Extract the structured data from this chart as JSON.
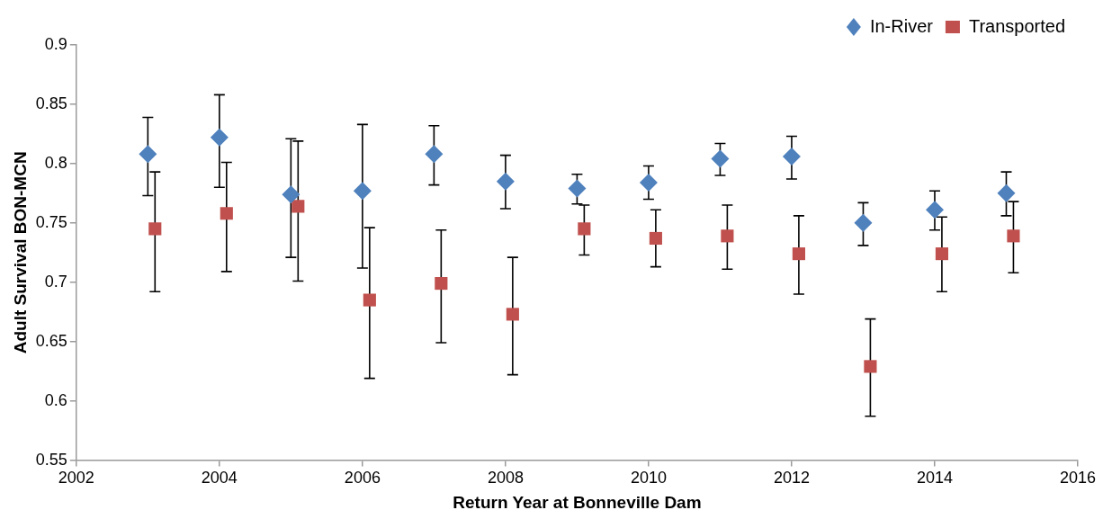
{
  "chart_data": {
    "type": "scatter",
    "xlabel": "Return Year at Bonneville Dam",
    "ylabel": "Adult Survival BON-MCN",
    "xlim": [
      2002,
      2016
    ],
    "xticks": [
      2002,
      2004,
      2006,
      2008,
      2010,
      2012,
      2014,
      2016
    ],
    "ylim": [
      0.55,
      0.9
    ],
    "yticks": [
      0.55,
      0.6,
      0.65,
      0.7,
      0.75,
      0.8,
      0.85,
      0.9
    ],
    "grid": false,
    "legend": "top right",
    "series": [
      {
        "name": "In-River",
        "color": "#4f81bd",
        "marker": "diamond",
        "x": [
          2003,
          2004,
          2005,
          2006,
          2007,
          2008,
          2009,
          2010,
          2011,
          2012,
          2013,
          2014,
          2015
        ],
        "values": [
          0.808,
          0.822,
          0.774,
          0.777,
          0.808,
          0.785,
          0.779,
          0.784,
          0.804,
          0.806,
          0.75,
          0.761,
          0.775
        ],
        "errors": [
          [
            0.773,
            0.839
          ],
          [
            0.78,
            0.858
          ],
          [
            0.721,
            0.821
          ],
          [
            0.712,
            0.833
          ],
          [
            0.782,
            0.832
          ],
          [
            0.762,
            0.807
          ],
          [
            0.766,
            0.791
          ],
          [
            0.77,
            0.798
          ],
          [
            0.79,
            0.817
          ],
          [
            0.787,
            0.823
          ],
          [
            0.731,
            0.767
          ],
          [
            0.744,
            0.777
          ],
          [
            0.756,
            0.793
          ]
        ]
      },
      {
        "name": "Transported",
        "color": "#c0504d",
        "marker": "square",
        "x": [
          2003.1,
          2004.1,
          2005.1,
          2006.1,
          2007.1,
          2008.1,
          2009.1,
          2010.1,
          2011.1,
          2012.1,
          2013.1,
          2014.1,
          2015.1
        ],
        "values": [
          0.745,
          0.758,
          0.764,
          0.685,
          0.699,
          0.673,
          0.745,
          0.737,
          0.739,
          0.724,
          0.629,
          0.724,
          0.739
        ],
        "errors": [
          [
            0.692,
            0.793
          ],
          [
            0.709,
            0.801
          ],
          [
            0.701,
            0.819
          ],
          [
            0.619,
            0.746
          ],
          [
            0.649,
            0.744
          ],
          [
            0.622,
            0.721
          ],
          [
            0.723,
            0.765
          ],
          [
            0.713,
            0.761
          ],
          [
            0.711,
            0.765
          ],
          [
            0.69,
            0.756
          ],
          [
            0.587,
            0.669
          ],
          [
            0.692,
            0.755
          ],
          [
            0.708,
            0.768
          ]
        ]
      }
    ]
  }
}
